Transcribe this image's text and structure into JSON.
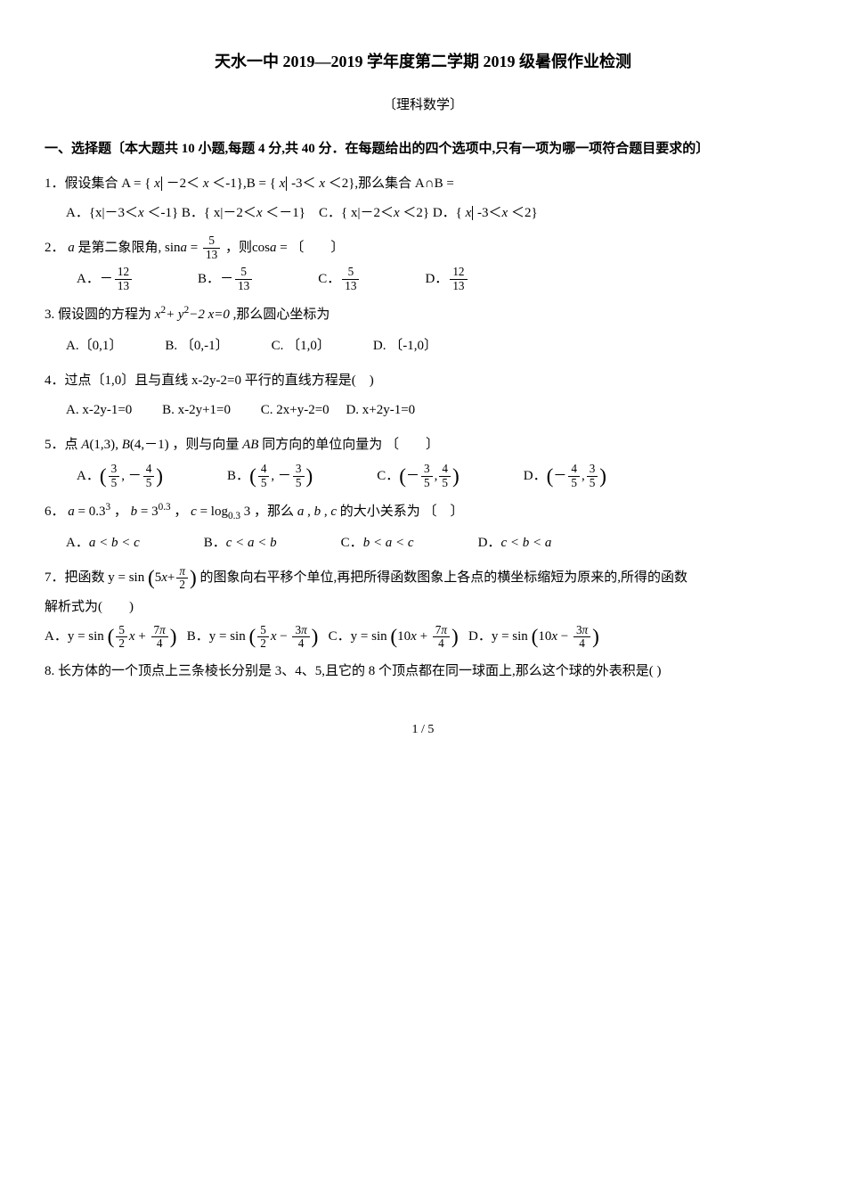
{
  "title": "天水一中 2019—2019 学年度第二学期 2019 级暑假作业检测",
  "subtitle": "〔理科数学〕",
  "sectionI": "一、选择题〔本大题共 10 小题,每题 4 分,共 40 分．在每题给出的四个选项中,只有一项为哪一项符合题目要求的〕",
  "q1": "1．假设集合 A = {",
  "q1mid1": "－2＜",
  "q1mid2": "＜-1},B = {",
  "q1mid3": "-3＜",
  "q1mid4": "＜2},那么集合 A∩B =",
  "q1A": "A．{x|－3＜",
  "q1A2": "＜-1}  B．{ x|－2＜",
  "q1A3": "＜－1}　C．{ x|－2＜",
  "q1A4": "＜2}  D．{",
  "q1A5": "-3＜",
  "q1A6": "＜2}",
  "q2": "2．",
  "q2text": "是第二象限角,",
  "q2sin": "sin",
  "q2eq": " = ",
  "q2then": "，则cos",
  "q2eq2": " = ",
  "q2tail": "〔　　〕",
  "q2A": "A．",
  "q2B": "B．",
  "q2C": "C．",
  "q2D": "D．",
  "f5": "5",
  "f13": "13",
  "f12": "12",
  "q3": "3. 假设圆的方程为",
  "q3mid": " ,那么圆心坐标为",
  "q3A": "A.〔0,1〕",
  "q3B": "B. 〔0,-1〕",
  "q3C": "C. 〔1,0〕",
  "q3D": "D. 〔-1,0〕",
  "q4": "4．过点〔1,0〕且与直线 x-2y-2=0 平行的直线方程是(　)",
  "q4A": "A. x-2y-1=0",
  "q4B": "B.  x-2y+1=0",
  "q4C": "C.  2x+y-2=0",
  "q4D": "D.  x+2y-1=0",
  "q5": "5．点",
  "q5mid": "，则与向量 ",
  "q5mid2": "同方向的单位向量为",
  "q5tail": "〔　　〕",
  "q5A": "A．",
  "q5B": "B．",
  "q5C": "C．",
  "q5D": "D．",
  "f3": "3",
  "f4": "4",
  "q6": "6．",
  "q6mid": "，",
  "q6mid2": "，",
  "q6mid3": "，那么",
  "q6tail": " 的大小关系为 〔　〕",
  "q6A": "A．",
  "q6B": "B．",
  "q6C": "C．",
  "q6D": "D．",
  "abc_a": "a < b < c",
  "abc_b": "c < a < b",
  "abc_c": "b < a < c",
  "abc_d": "c < b < a",
  "q7": "7．把函数 y = sin",
  "q7mid": "的图象向右平移个单位,再把所得函数图象上各点的横坐标缩短为原来的,所得的函数",
  "q7line2": "解析式为(　　)",
  "q7A": "A．y = sin",
  "q7B": "B．y = sin",
  "q7C": "C．y = sin",
  "q7D": "D．y = sin",
  "f7": "7",
  "f2": "2",
  "pi": "π",
  "q8": "8. 长方体的一个顶点上三条棱长分别是 3、4、5,且它的 8 个顶点都在同一球面上,那么这个球的外表积是( )",
  "pageno": "1 / 5"
}
